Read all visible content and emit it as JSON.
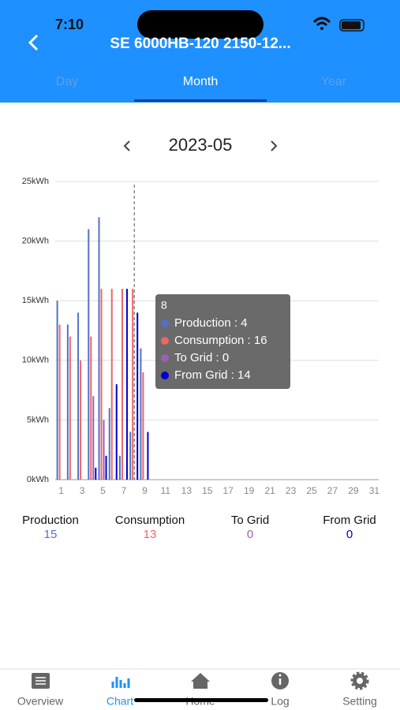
{
  "status_bar": {
    "time": "7:10"
  },
  "header": {
    "title": "SE 6000HB-120 2150-12...",
    "tabs": [
      "Day",
      "Month",
      "Year"
    ]
  },
  "date": "2023-05",
  "chart_data": {
    "type": "bar",
    "categories": [
      "1",
      null,
      "3",
      null,
      "5",
      null,
      "7",
      null,
      "9",
      null,
      "11",
      null,
      "13",
      null,
      "15",
      null,
      "17",
      null,
      "19",
      null,
      "21",
      null,
      "23",
      null,
      "25",
      null,
      "27",
      null,
      "29",
      null,
      "31"
    ],
    "series": [
      {
        "name": "Production",
        "color": "#5470c6",
        "values": [
          15,
          13,
          14,
          21,
          22,
          6,
          2,
          4,
          11,
          null,
          null,
          null,
          null,
          null,
          null,
          null,
          null,
          null,
          null,
          null,
          null,
          null,
          null,
          null,
          null,
          null,
          null,
          null,
          null,
          null,
          null
        ]
      },
      {
        "name": "Consumption",
        "color": "#ee6666",
        "values": [
          13,
          12,
          10,
          12,
          16,
          16,
          16,
          16,
          9,
          null,
          null,
          null,
          null,
          null,
          null,
          null,
          null,
          null,
          null,
          null,
          null,
          null,
          null,
          null,
          null,
          null,
          null,
          null,
          null,
          null,
          null
        ]
      },
      {
        "name": "To Grid",
        "color": "#9a60b4",
        "values": [
          0,
          0,
          0,
          7,
          5,
          0,
          0,
          0,
          0,
          null,
          null,
          null,
          null,
          null,
          null,
          null,
          null,
          null,
          null,
          null,
          null,
          null,
          null,
          null,
          null,
          null,
          null,
          null,
          null,
          null,
          null
        ]
      },
      {
        "name": "From Grid",
        "color": "#0000cc",
        "values": [
          0,
          0,
          0,
          1,
          2,
          8,
          16,
          14,
          4,
          null,
          null,
          null,
          null,
          null,
          null,
          null,
          null,
          null,
          null,
          null,
          null,
          null,
          null,
          null,
          null,
          null,
          null,
          null,
          null,
          null,
          null
        ]
      }
    ],
    "ylim": [
      0,
      25
    ],
    "yticks": [
      {
        "value": 0,
        "label": "0kWh"
      },
      {
        "value": 5,
        "label": "5kWh"
      },
      {
        "value": 10,
        "label": "10kWh"
      },
      {
        "value": 15,
        "label": "15kWh"
      },
      {
        "value": 20,
        "label": "20kWh"
      },
      {
        "value": 25,
        "label": "25kWh"
      }
    ],
    "grid": true
  },
  "tooltip": {
    "title": "8",
    "separator": ":"
  },
  "summary": {
    "values": [
      15,
      13,
      0,
      0
    ]
  },
  "nav": [
    "Overview",
    "Chart",
    "Home",
    "Log",
    "Setting"
  ]
}
